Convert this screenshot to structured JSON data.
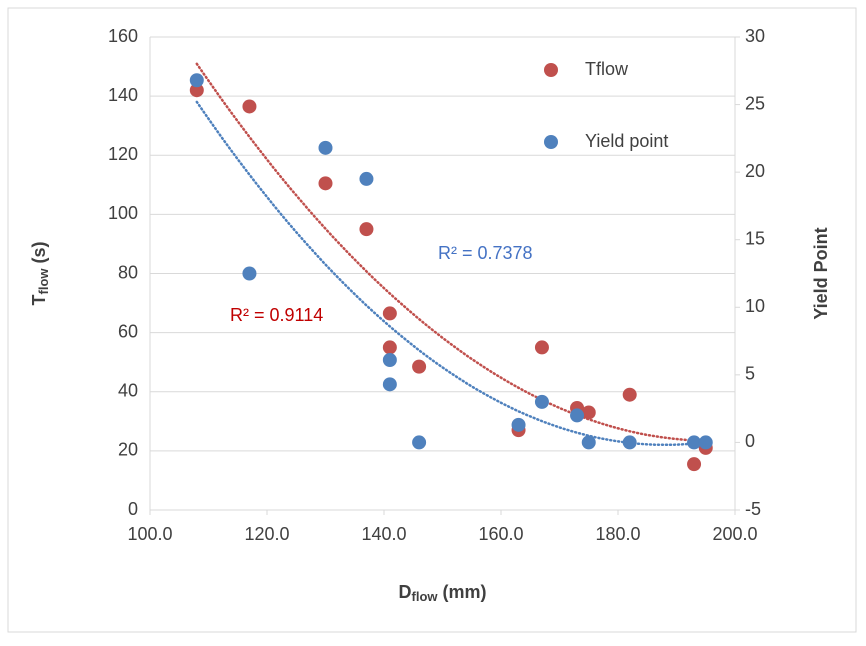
{
  "chart_data": {
    "type": "scatter",
    "x_label": {
      "main": "D",
      "sub": "flow",
      "unit": "(mm)"
    },
    "y_label": {
      "main": "T",
      "sub": "flow",
      "unit": "(s)"
    },
    "y2_label": "Yield Point",
    "x": [
      108,
      117,
      130,
      137,
      141,
      141,
      146,
      163,
      167,
      173,
      175,
      182,
      193,
      195
    ],
    "series": [
      {
        "name": "Tflow",
        "color": "#c0504d",
        "axis": "y",
        "values": [
          142,
          136.5,
          110.5,
          95,
          66.5,
          55,
          48.5,
          27,
          55,
          34.5,
          33,
          39,
          15.5,
          21
        ],
        "trendline": {
          "kind": "poly2",
          "label": "R² = 0.9114",
          "label_color": "#c00000"
        }
      },
      {
        "name": "Yield point",
        "color": "#4f81bd",
        "axis": "y2",
        "values": [
          26.8,
          12.5,
          21.8,
          19.5,
          6.1,
          4.3,
          0,
          1.3,
          3,
          2,
          0,
          0,
          0,
          0
        ],
        "trendline": {
          "kind": "poly2",
          "label": "R² = 0.7378",
          "label_color": "#4472c4"
        }
      }
    ],
    "xlim": [
      100,
      200
    ],
    "xticks": [
      {
        "value": 100,
        "label": "100.0"
      },
      {
        "value": 120,
        "label": "120.0"
      },
      {
        "value": 140,
        "label": "140.0"
      },
      {
        "value": 160,
        "label": "160.0"
      },
      {
        "value": 180,
        "label": "180.0"
      },
      {
        "value": 200,
        "label": "200.0"
      }
    ],
    "ylim": [
      0,
      160
    ],
    "yticks": [
      0,
      20,
      40,
      60,
      80,
      100,
      120,
      140,
      160
    ],
    "y2lim": [
      -5,
      30
    ],
    "y2ticks": [
      -5,
      0,
      5,
      10,
      15,
      20,
      25,
      30
    ],
    "grid": true,
    "legend": "upper right"
  }
}
